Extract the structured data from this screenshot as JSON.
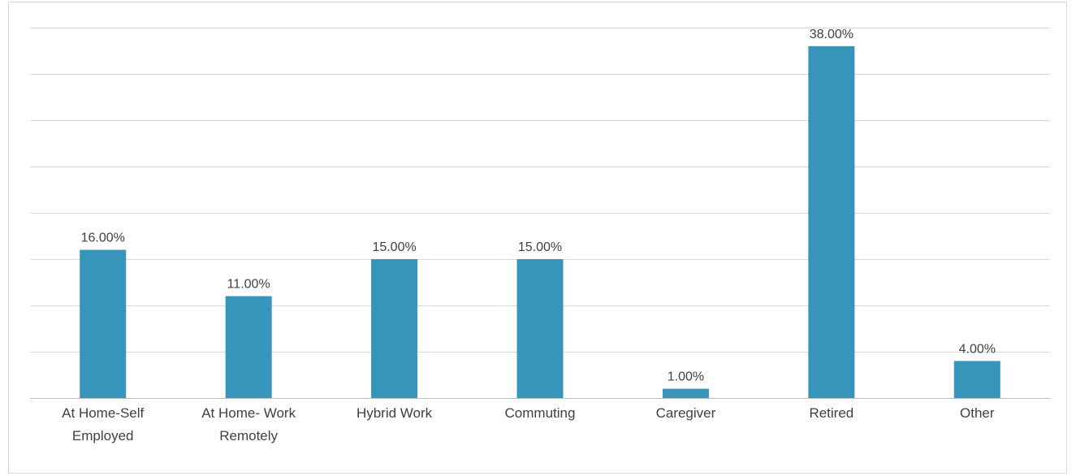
{
  "chart_data": {
    "type": "bar",
    "categories": [
      "At Home-Self Employed",
      "At Home- Work Remotely",
      "Hybrid Work",
      "Commuting",
      "Caregiver",
      "Retired",
      "Other"
    ],
    "values": [
      16,
      11,
      15,
      15,
      1,
      38,
      4
    ],
    "value_labels": [
      "16.00%",
      "11.00%",
      "15.00%",
      "15.00%",
      "1.00%",
      "38.00%",
      "4.00%"
    ],
    "color": "#3795bc",
    "ylim": [
      0,
      40
    ],
    "yticks": [
      0,
      5,
      10,
      15,
      20,
      25,
      30,
      35,
      40
    ],
    "grid": true
  }
}
